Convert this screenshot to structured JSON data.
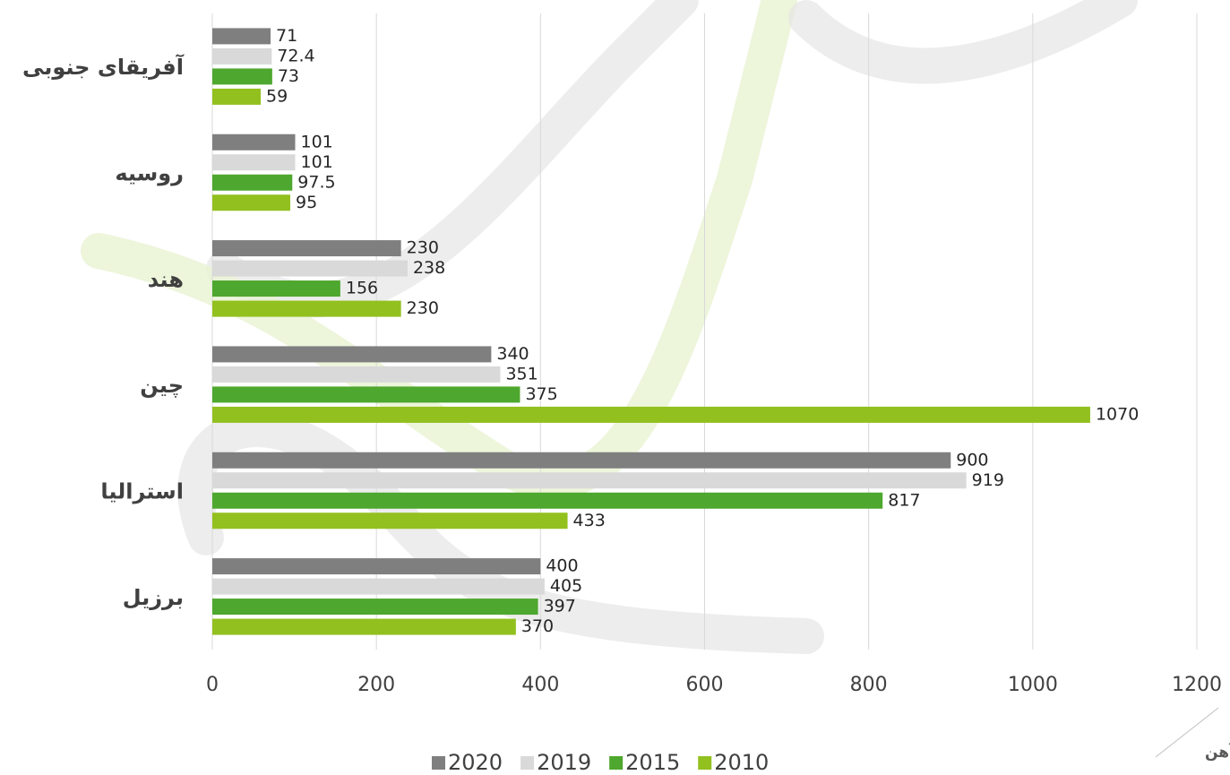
{
  "chart_data": {
    "type": "bar",
    "orientation": "horizontal",
    "categories": [
      "آفریقای جنوبی",
      "روسیه",
      "هند",
      "چین",
      "استرالیا",
      "برزیل"
    ],
    "series": [
      {
        "name": "2020",
        "color": "#7f7f7f",
        "values": [
          71,
          101,
          230,
          340,
          900,
          400
        ]
      },
      {
        "name": "2019",
        "color": "#d9d9d9",
        "values": [
          72.4,
          101,
          238,
          351,
          919,
          405
        ]
      },
      {
        "name": "2015",
        "color": "#4ea72e",
        "values": [
          73,
          97.5,
          156,
          375,
          817,
          397
        ]
      },
      {
        "name": "2010",
        "color": "#92c01f",
        "values": [
          59,
          95,
          230,
          1070,
          433,
          370
        ]
      }
    ],
    "xlim": [
      0,
      1200
    ],
    "xticks": [
      0,
      200,
      400,
      600,
      800,
      1000,
      1200
    ],
    "grid": true,
    "legend": "bottom",
    "corner_label": "سنگ آهن"
  }
}
